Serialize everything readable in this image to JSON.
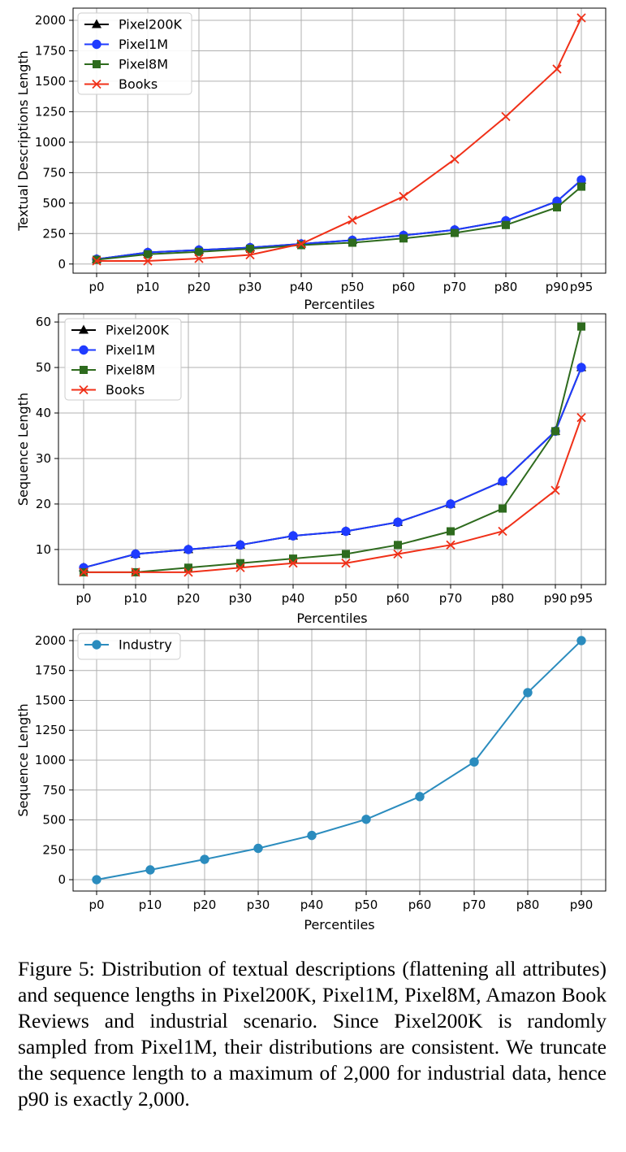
{
  "colors": {
    "pixel200k": "#000000",
    "pixel1m": "#1f3bff",
    "pixel8m": "#2e6b1e",
    "books": "#f03018",
    "industry": "#2b8cbe",
    "grid": "#b0b0b0"
  },
  "chart_data": [
    {
      "type": "line",
      "title": "",
      "xlabel": "Percentiles",
      "ylabel": "Textual Descriptions Length",
      "categories": [
        "p0",
        "p10",
        "p20",
        "p30",
        "p40",
        "p50",
        "p60",
        "p70",
        "p80",
        "p90",
        "p95"
      ],
      "x": [
        0,
        10,
        20,
        30,
        40,
        50,
        60,
        70,
        80,
        90,
        95
      ],
      "ylim": [
        -75,
        2100
      ],
      "yticks": [
        0,
        250,
        500,
        750,
        1000,
        1250,
        1500,
        1750,
        2000
      ],
      "grid": true,
      "legend_position": "top-left",
      "series": [
        {
          "name": "Pixel200K",
          "marker": "triangle",
          "color_key": "pixel200k",
          "values": [
            40,
            95,
            115,
            135,
            165,
            195,
            235,
            280,
            355,
            515,
            690
          ]
        },
        {
          "name": "Pixel1M",
          "marker": "circle",
          "color_key": "pixel1m",
          "values": [
            40,
            95,
            115,
            135,
            165,
            195,
            235,
            280,
            355,
            515,
            690
          ]
        },
        {
          "name": "Pixel8M",
          "marker": "square",
          "color_key": "pixel8m",
          "values": [
            35,
            80,
            100,
            125,
            155,
            175,
            210,
            255,
            320,
            465,
            635
          ]
        },
        {
          "name": "Books",
          "marker": "x",
          "color_key": "books",
          "values": [
            25,
            25,
            45,
            75,
            165,
            360,
            555,
            860,
            1210,
            1600,
            2020
          ]
        }
      ]
    },
    {
      "type": "line",
      "title": "",
      "xlabel": "Percentiles",
      "ylabel": "Sequence Length",
      "categories": [
        "p0",
        "p10",
        "p20",
        "p30",
        "p40",
        "p50",
        "p60",
        "p70",
        "p80",
        "p90",
        "p95"
      ],
      "x": [
        0,
        10,
        20,
        30,
        40,
        50,
        60,
        70,
        80,
        90,
        95
      ],
      "ylim": [
        2.3,
        61.8
      ],
      "yticks": [
        10,
        20,
        30,
        40,
        50,
        60
      ],
      "grid": true,
      "legend_position": "top-left",
      "series": [
        {
          "name": "Pixel200K",
          "marker": "triangle",
          "color_key": "pixel200k",
          "values": [
            6,
            9,
            10,
            11,
            13,
            14,
            16,
            20,
            25,
            36,
            50
          ]
        },
        {
          "name": "Pixel1M",
          "marker": "circle",
          "color_key": "pixel1m",
          "values": [
            6,
            9,
            10,
            11,
            13,
            14,
            16,
            20,
            25,
            36,
            50
          ]
        },
        {
          "name": "Pixel8M",
          "marker": "square",
          "color_key": "pixel8m",
          "values": [
            5,
            5,
            6,
            7,
            8,
            9,
            11,
            14,
            19,
            36,
            59
          ]
        },
        {
          "name": "Books",
          "marker": "x",
          "color_key": "books",
          "values": [
            5,
            5,
            5,
            6,
            7,
            7,
            9,
            11,
            14,
            23,
            39
          ]
        }
      ]
    },
    {
      "type": "line",
      "title": "",
      "xlabel": "Percentiles",
      "ylabel": "Sequence Length",
      "categories": [
        "p0",
        "p10",
        "p20",
        "p30",
        "p40",
        "p50",
        "p60",
        "p70",
        "p80",
        "p90"
      ],
      "x": [
        0,
        10,
        20,
        30,
        40,
        50,
        60,
        70,
        80,
        90
      ],
      "ylim": [
        -95,
        2095
      ],
      "yticks": [
        0,
        250,
        500,
        750,
        1000,
        1250,
        1500,
        1750,
        2000
      ],
      "grid": true,
      "legend_position": "top-left",
      "series": [
        {
          "name": "Industry",
          "marker": "circle",
          "color_key": "industry",
          "values": [
            0,
            82,
            170,
            262,
            370,
            505,
            695,
            985,
            1565,
            2000
          ]
        }
      ]
    }
  ],
  "caption": "Figure 5: Distribution of textual descriptions (flattening all attributes) and sequence lengths in Pixel200K, Pixel1M, Pixel8M, Amazon Book Reviews and industrial scenario. Since Pixel200K is randomly sampled from Pixel1M, their distributions are consistent. We truncate the sequence length to a maximum of 2,000 for industrial data, hence p90 is exactly 2,000."
}
